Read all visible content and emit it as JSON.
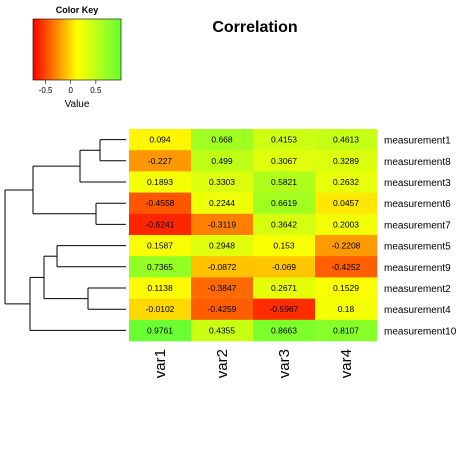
{
  "chart_data": {
    "type": "heatmap",
    "title": "Correlation",
    "color_key": {
      "title": "Color Key",
      "label": "Value",
      "ticks": [
        "-0.5",
        "0",
        "0.5"
      ],
      "tick_values": [
        -0.5,
        0,
        0.5
      ],
      "range": [
        -0.75,
        1.0
      ],
      "colors": [
        "#ff0000",
        "#ffff00",
        "#66ff33"
      ]
    },
    "columns": [
      "var1",
      "var2",
      "var3",
      "var4"
    ],
    "rows": [
      "measurement1",
      "measurement8",
      "measurement3",
      "measurement6",
      "measurement7",
      "measurement5",
      "measurement9",
      "measurement2",
      "measurement4",
      "measurement10"
    ],
    "values": [
      [
        0.094,
        0.668,
        0.4153,
        0.4613
      ],
      [
        -0.227,
        0.499,
        0.3067,
        0.3289
      ],
      [
        0.1893,
        0.3303,
        0.5821,
        0.2632
      ],
      [
        -0.4558,
        0.2244,
        0.6619,
        0.0457
      ],
      [
        -0.6241,
        -0.3119,
        0.3642,
        0.2003
      ],
      [
        0.1587,
        0.2948,
        0.153,
        -0.2208
      ],
      [
        0.7365,
        -0.0872,
        -0.069,
        -0.4252
      ],
      [
        0.1138,
        -0.3847,
        0.2671,
        0.1529
      ],
      [
        -0.0102,
        -0.4259,
        -0.5967,
        0.18
      ],
      [
        0.9761,
        0.4355,
        0.8663,
        0.8107
      ]
    ],
    "labels": [
      [
        "0.094",
        "0.668",
        "0.4153",
        "0.4613"
      ],
      [
        "-0.227",
        "0.499",
        "0.3067",
        "0.3289"
      ],
      [
        "0.1893",
        "0.3303",
        "0.5821",
        "0.2632"
      ],
      [
        "-0.4558",
        "0.2244",
        "0.6619",
        "0.0457"
      ],
      [
        "-0.6241",
        "-0.3119",
        "0.3642",
        "0.2003"
      ],
      [
        "0.1587",
        "0.2948",
        "0.153",
        "-0.2208"
      ],
      [
        "0.7365",
        "-0.0872",
        "-0.069",
        "-0.4252"
      ],
      [
        "0.1138",
        "-0.3847",
        "0.2671",
        "0.1529"
      ],
      [
        "-0.0102",
        "-0.4259",
        "-0.5967",
        "0.18"
      ],
      [
        "0.9761",
        "0.4355",
        "0.8663",
        "0.8107"
      ]
    ],
    "row_dendrogram": true,
    "grid": false
  }
}
